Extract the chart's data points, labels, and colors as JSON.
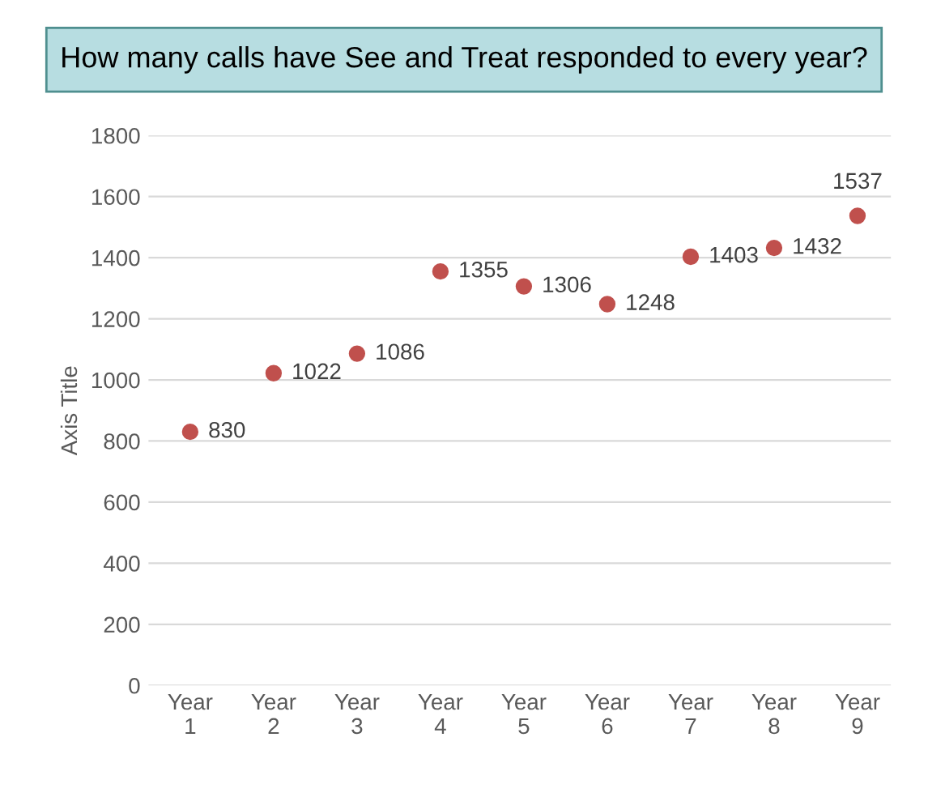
{
  "chart_data": {
    "type": "scatter",
    "title": "How many calls have See and Treat responded to every year?",
    "ylabel": "Axis Title",
    "categories": [
      "Year\n1",
      "Year\n2",
      "Year\n3",
      "Year\n4",
      "Year\n5",
      "Year\n6",
      "Year\n7",
      "Year\n8",
      "Year\n9"
    ],
    "series": [
      {
        "color": "#c0504d",
        "values": [
          830,
          1022,
          1086,
          1355,
          1306,
          1248,
          1403,
          1432,
          1537
        ]
      }
    ],
    "ylim": [
      0,
      1800
    ],
    "yticks": [
      0,
      200,
      400,
      600,
      800,
      1000,
      1200,
      1400,
      1600,
      1800
    ],
    "grid": "y",
    "marker": "circle",
    "data_labels": true,
    "legend": false
  }
}
